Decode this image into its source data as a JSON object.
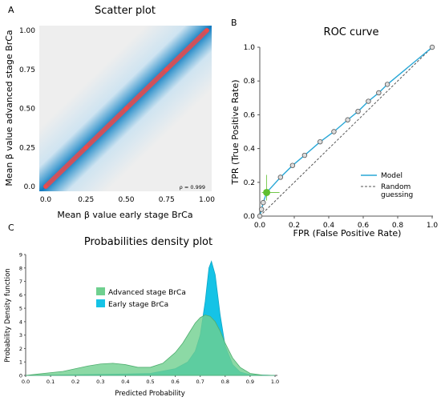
{
  "chart_data": [
    {
      "panel": "A",
      "type": "scatter",
      "title": "Scatter plot",
      "xlabel": "Mean β value early stage BrCa",
      "ylabel": "Mean β value advanced stage BrCa",
      "xlim": [
        0,
        1
      ],
      "ylim": [
        0,
        1
      ],
      "x_ticks": [
        "0.0",
        "0.25",
        "0.50",
        "0.75",
        "1.00"
      ],
      "y_ticks": [
        "0.0",
        "0.25",
        "0.50",
        "0.75",
        "1.00"
      ],
      "annotation": "ρ = 0.999",
      "trend": [
        [
          0.0,
          0.0
        ],
        [
          0.25,
          0.25
        ],
        [
          0.5,
          0.5
        ],
        [
          0.75,
          0.75
        ],
        [
          1.0,
          1.0
        ]
      ],
      "colors": {
        "background": "#eeeeee",
        "density_core": "#1a7fc0",
        "density_edge": "#cfe4f1",
        "points": "#ee4a4a"
      }
    },
    {
      "panel": "B",
      "type": "line",
      "title": "ROC  curve",
      "xlabel": "FPR (False Positive Rate)",
      "ylabel": "TPR (True Positive Rate)",
      "xlim": [
        0,
        1
      ],
      "ylim": [
        0,
        1
      ],
      "x_ticks": [
        "0.0",
        "0.2",
        "0.4",
        "0.6",
        "0.8",
        "1.0"
      ],
      "y_ticks": [
        "0.0",
        "0.2",
        "0.4",
        "0.6",
        "0.8",
        "1.0"
      ],
      "series": [
        {
          "name": "Model",
          "color": "#29a7d6",
          "x": [
            0.0,
            0.01,
            0.02,
            0.04,
            0.12,
            0.19,
            0.26,
            0.35,
            0.43,
            0.51,
            0.57,
            0.63,
            0.69,
            0.74,
            1.0
          ],
          "y": [
            0.0,
            0.04,
            0.08,
            0.14,
            0.23,
            0.3,
            0.36,
            0.44,
            0.5,
            0.57,
            0.62,
            0.68,
            0.73,
            0.78,
            1.0
          ]
        },
        {
          "name": "Random\nguessing",
          "color": "#555555",
          "dashed": true,
          "x": [
            0,
            1
          ],
          "y": [
            0,
            1
          ]
        }
      ],
      "highlight_point": {
        "x": 0.04,
        "y": 0.14,
        "color": "#5fbf2f"
      }
    },
    {
      "panel": "C",
      "type": "area",
      "title": "Probabilities density plot",
      "xlabel": "Predicted Probability",
      "ylabel": "Probability Density function",
      "xlim": [
        0,
        1
      ],
      "ylim": [
        0,
        9
      ],
      "x_ticks": [
        "0.0",
        "0.1",
        "0.2",
        "0.3",
        "0.4",
        "0.5",
        "0.6",
        "0.7",
        "0.8",
        "0.9",
        "1.0"
      ],
      "y_ticks": [
        "0",
        "1",
        "2",
        "3",
        "4",
        "5",
        "6",
        "7",
        "8",
        "9"
      ],
      "series": [
        {
          "name": "Advanced stage BrCa",
          "color": "#6fd08f",
          "x": [
            0.0,
            0.05,
            0.1,
            0.15,
            0.2,
            0.25,
            0.3,
            0.35,
            0.4,
            0.45,
            0.5,
            0.55,
            0.6,
            0.63,
            0.66,
            0.68,
            0.7,
            0.72,
            0.74,
            0.76,
            0.78,
            0.8,
            0.83,
            0.86,
            0.9,
            0.95,
            1.0
          ],
          "y": [
            0.0,
            0.1,
            0.2,
            0.3,
            0.5,
            0.7,
            0.85,
            0.9,
            0.8,
            0.6,
            0.6,
            0.9,
            1.7,
            2.4,
            3.3,
            3.9,
            4.3,
            4.5,
            4.4,
            4.0,
            3.3,
            2.4,
            1.3,
            0.6,
            0.15,
            0.02,
            0.0
          ]
        },
        {
          "name": "Early stage BrCa",
          "color": "#15c3e6",
          "x": [
            0.0,
            0.1,
            0.2,
            0.3,
            0.4,
            0.5,
            0.6,
            0.65,
            0.68,
            0.7,
            0.72,
            0.735,
            0.745,
            0.76,
            0.78,
            0.8,
            0.83,
            0.86,
            0.9,
            1.0
          ],
          "y": [
            0.0,
            0.02,
            0.05,
            0.08,
            0.1,
            0.15,
            0.5,
            1.0,
            1.8,
            3.0,
            5.5,
            8.0,
            8.5,
            7.5,
            4.5,
            2.2,
            0.8,
            0.25,
            0.05,
            0.0
          ]
        }
      ],
      "legend_placement": "upper-left"
    }
  ]
}
